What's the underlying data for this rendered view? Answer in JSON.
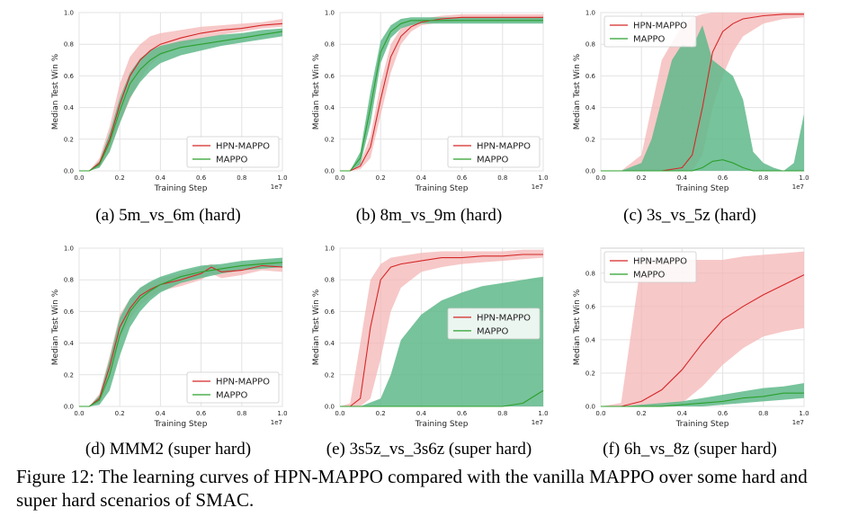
{
  "colors": {
    "hpn_line": "#d62728",
    "hpn_band": "#f4b6b6",
    "mappo_line": "#2ca02c",
    "mappo_band": "#5fb98a"
  },
  "figure_caption": "Figure 12: The learning curves of HPN-MAPPO compared with the vanilla MAPPO over some hard and super hard scenarios of SMAC.",
  "chart_data": [
    {
      "type": "line",
      "caption": "(a)  5m_vs_6m (hard)",
      "xlabel": "Training Step",
      "ylabel": "Median Test Win %",
      "x_offset_label": "1e7",
      "xlim": [
        0,
        1.0
      ],
      "ylim": [
        0,
        1.0
      ],
      "xticks": [
        "0.0",
        "0.2",
        "0.4",
        "0.6",
        "0.8",
        "1.0"
      ],
      "yticks": [
        "0.0",
        "0.2",
        "0.4",
        "0.6",
        "0.8",
        "1.0"
      ],
      "legend_position": "lower-right",
      "series": [
        {
          "name": "HPN-MAPPO",
          "x": [
            0,
            0.05,
            0.1,
            0.15,
            0.2,
            0.25,
            0.3,
            0.35,
            0.4,
            0.5,
            0.6,
            0.7,
            0.8,
            0.9,
            1.0
          ],
          "y": [
            0,
            0,
            0.05,
            0.2,
            0.42,
            0.6,
            0.7,
            0.76,
            0.8,
            0.84,
            0.87,
            0.89,
            0.9,
            0.92,
            0.93
          ],
          "lower": [
            0,
            0,
            0.02,
            0.12,
            0.3,
            0.45,
            0.58,
            0.67,
            0.73,
            0.79,
            0.83,
            0.86,
            0.88,
            0.9,
            0.91
          ],
          "upper": [
            0,
            0,
            0.08,
            0.28,
            0.55,
            0.72,
            0.8,
            0.85,
            0.87,
            0.89,
            0.91,
            0.92,
            0.93,
            0.94,
            0.96
          ]
        },
        {
          "name": "MAPPO",
          "x": [
            0,
            0.05,
            0.1,
            0.15,
            0.2,
            0.25,
            0.3,
            0.35,
            0.4,
            0.5,
            0.6,
            0.7,
            0.8,
            0.9,
            1.0
          ],
          "y": [
            0,
            0,
            0.04,
            0.18,
            0.38,
            0.55,
            0.64,
            0.7,
            0.74,
            0.78,
            0.8,
            0.82,
            0.84,
            0.86,
            0.88
          ],
          "lower": [
            0,
            0,
            0.02,
            0.12,
            0.3,
            0.46,
            0.56,
            0.63,
            0.68,
            0.73,
            0.76,
            0.79,
            0.81,
            0.83,
            0.85
          ],
          "upper": [
            0,
            0,
            0.06,
            0.24,
            0.46,
            0.62,
            0.71,
            0.76,
            0.79,
            0.82,
            0.84,
            0.86,
            0.87,
            0.89,
            0.9
          ]
        }
      ]
    },
    {
      "type": "line",
      "caption": "(b)  8m_vs_9m (hard)",
      "xlabel": "Training Step",
      "ylabel": "Median Test Win %",
      "x_offset_label": "1e7",
      "xlim": [
        0,
        1.0
      ],
      "ylim": [
        0,
        1.0
      ],
      "xticks": [
        "0.0",
        "0.2",
        "0.4",
        "0.6",
        "0.8",
        "1.0"
      ],
      "yticks": [
        "0.0",
        "0.2",
        "0.4",
        "0.6",
        "0.8",
        "1.0"
      ],
      "legend_position": "lower-right",
      "series": [
        {
          "name": "HPN-MAPPO",
          "x": [
            0,
            0.05,
            0.1,
            0.15,
            0.2,
            0.25,
            0.3,
            0.35,
            0.4,
            0.5,
            0.6,
            0.7,
            0.8,
            0.9,
            1.0
          ],
          "y": [
            0,
            0,
            0.03,
            0.15,
            0.45,
            0.72,
            0.85,
            0.91,
            0.94,
            0.96,
            0.97,
            0.97,
            0.97,
            0.97,
            0.97
          ],
          "lower": [
            0,
            0,
            0.01,
            0.08,
            0.35,
            0.62,
            0.8,
            0.88,
            0.92,
            0.94,
            0.95,
            0.95,
            0.95,
            0.95,
            0.95
          ],
          "upper": [
            0,
            0,
            0.05,
            0.22,
            0.55,
            0.8,
            0.9,
            0.94,
            0.96,
            0.98,
            0.99,
            0.99,
            0.99,
            0.99,
            0.99
          ]
        },
        {
          "name": "MAPPO",
          "x": [
            0,
            0.05,
            0.1,
            0.15,
            0.2,
            0.25,
            0.3,
            0.35,
            0.4,
            0.5,
            0.6,
            0.7,
            0.8,
            0.9,
            1.0
          ],
          "y": [
            0,
            0,
            0.08,
            0.4,
            0.75,
            0.88,
            0.93,
            0.95,
            0.95,
            0.95,
            0.95,
            0.95,
            0.95,
            0.95,
            0.95
          ],
          "lower": [
            0,
            0,
            0.04,
            0.3,
            0.68,
            0.84,
            0.9,
            0.92,
            0.93,
            0.93,
            0.93,
            0.93,
            0.93,
            0.93,
            0.93
          ],
          "upper": [
            0,
            0,
            0.12,
            0.5,
            0.82,
            0.92,
            0.96,
            0.97,
            0.97,
            0.97,
            0.97,
            0.97,
            0.97,
            0.97,
            0.97
          ]
        }
      ]
    },
    {
      "type": "line",
      "caption": "(c)  3s_vs_5z (hard)",
      "xlabel": "Training Step",
      "ylabel": "Median Test Win %",
      "x_offset_label": "1e7",
      "xlim": [
        0,
        1.0
      ],
      "ylim": [
        0,
        1.0
      ],
      "xticks": [
        "0.0",
        "0.2",
        "0.4",
        "0.6",
        "0.8",
        "1.0"
      ],
      "yticks": [
        "0.0",
        "0.2",
        "0.4",
        "0.6",
        "0.8",
        "1.0"
      ],
      "legend_position": "upper-left",
      "series": [
        {
          "name": "HPN-MAPPO",
          "x": [
            0,
            0.1,
            0.2,
            0.3,
            0.4,
            0.45,
            0.5,
            0.55,
            0.6,
            0.65,
            0.7,
            0.8,
            0.9,
            1.0
          ],
          "y": [
            0,
            0,
            0,
            0,
            0.02,
            0.1,
            0.4,
            0.75,
            0.88,
            0.93,
            0.96,
            0.98,
            0.99,
            0.99
          ],
          "lower": [
            0,
            0,
            0,
            0,
            0,
            0,
            0.1,
            0.4,
            0.6,
            0.75,
            0.85,
            0.93,
            0.96,
            0.97
          ],
          "upper": [
            0,
            0,
            0.1,
            0.7,
            0.92,
            0.97,
            0.99,
            1.0,
            1.0,
            1.0,
            1.0,
            1.0,
            1.0,
            1.0
          ]
        },
        {
          "name": "MAPPO",
          "x": [
            0,
            0.1,
            0.2,
            0.25,
            0.3,
            0.35,
            0.4,
            0.45,
            0.5,
            0.55,
            0.6,
            0.65,
            0.7,
            0.75,
            0.8,
            0.85,
            0.9,
            0.95,
            1.0
          ],
          "y": [
            0,
            0,
            0,
            0,
            0,
            0,
            0,
            0,
            0.02,
            0.06,
            0.07,
            0.05,
            0.02,
            0,
            0,
            0,
            0,
            0,
            0
          ],
          "lower": [
            0,
            0,
            0,
            0,
            0,
            0,
            0,
            0,
            0,
            0,
            0,
            0,
            0,
            0,
            0,
            0,
            0,
            0,
            0
          ],
          "upper": [
            0,
            0,
            0.05,
            0.2,
            0.45,
            0.7,
            0.8,
            0.78,
            0.92,
            0.7,
            0.65,
            0.6,
            0.45,
            0.12,
            0.05,
            0.02,
            0,
            0.05,
            0.36
          ]
        }
      ]
    },
    {
      "type": "line",
      "caption": "(d)  MMM2 (super hard)",
      "xlabel": "Training Step",
      "ylabel": "Median Test Win %",
      "x_offset_label": "1e7",
      "xlim": [
        0,
        1.0
      ],
      "ylim": [
        0,
        1.0
      ],
      "xticks": [
        "0.0",
        "0.2",
        "0.4",
        "0.6",
        "0.8",
        "1.0"
      ],
      "yticks": [
        "0.0",
        "0.2",
        "0.4",
        "0.6",
        "0.8",
        "1.0"
      ],
      "legend_position": "lower-right",
      "series": [
        {
          "name": "HPN-MAPPO",
          "x": [
            0,
            0.05,
            0.1,
            0.15,
            0.2,
            0.25,
            0.3,
            0.35,
            0.4,
            0.5,
            0.6,
            0.65,
            0.7,
            0.8,
            0.9,
            1.0
          ],
          "y": [
            0,
            0,
            0.05,
            0.25,
            0.5,
            0.62,
            0.7,
            0.74,
            0.77,
            0.8,
            0.84,
            0.88,
            0.85,
            0.86,
            0.89,
            0.88
          ],
          "lower": [
            0,
            0,
            0.02,
            0.18,
            0.42,
            0.55,
            0.64,
            0.69,
            0.73,
            0.76,
            0.8,
            0.84,
            0.81,
            0.83,
            0.86,
            0.85
          ],
          "upper": [
            0,
            0,
            0.08,
            0.32,
            0.58,
            0.68,
            0.75,
            0.78,
            0.81,
            0.84,
            0.88,
            0.9,
            0.88,
            0.89,
            0.92,
            0.91
          ]
        },
        {
          "name": "MAPPO",
          "x": [
            0,
            0.05,
            0.1,
            0.15,
            0.2,
            0.25,
            0.3,
            0.35,
            0.4,
            0.5,
            0.6,
            0.7,
            0.8,
            0.9,
            1.0
          ],
          "y": [
            0,
            0,
            0.04,
            0.2,
            0.45,
            0.6,
            0.68,
            0.73,
            0.77,
            0.82,
            0.85,
            0.87,
            0.89,
            0.9,
            0.91
          ],
          "lower": [
            0,
            0,
            0.01,
            0.1,
            0.32,
            0.5,
            0.6,
            0.67,
            0.72,
            0.78,
            0.81,
            0.84,
            0.86,
            0.87,
            0.88
          ],
          "upper": [
            0,
            0,
            0.07,
            0.3,
            0.56,
            0.68,
            0.75,
            0.79,
            0.82,
            0.86,
            0.89,
            0.9,
            0.92,
            0.93,
            0.94
          ]
        }
      ]
    },
    {
      "type": "line",
      "caption": "(e)  3s5z_vs_3s6z (super hard)",
      "xlabel": "Training Step",
      "ylabel": "Median Test Win %",
      "x_offset_label": "1e7",
      "xlim": [
        0,
        1.0
      ],
      "ylim": [
        0,
        1.0
      ],
      "xticks": [
        "0.0",
        "0.2",
        "0.4",
        "0.6",
        "0.8",
        "1.0"
      ],
      "yticks": [
        "0.0",
        "0.2",
        "0.4",
        "0.6",
        "0.8",
        "1.0"
      ],
      "legend_position": "center-right",
      "series": [
        {
          "name": "HPN-MAPPO",
          "x": [
            0,
            0.05,
            0.1,
            0.15,
            0.2,
            0.25,
            0.3,
            0.4,
            0.5,
            0.6,
            0.7,
            0.8,
            0.9,
            1.0
          ],
          "y": [
            0,
            0,
            0.05,
            0.5,
            0.8,
            0.88,
            0.9,
            0.92,
            0.94,
            0.94,
            0.95,
            0.95,
            0.96,
            0.96
          ],
          "lower": [
            0,
            0,
            0,
            0.05,
            0.3,
            0.6,
            0.75,
            0.85,
            0.88,
            0.9,
            0.91,
            0.92,
            0.93,
            0.94
          ],
          "upper": [
            0,
            0.02,
            0.4,
            0.8,
            0.9,
            0.94,
            0.95,
            0.97,
            0.98,
            0.98,
            0.98,
            0.98,
            0.99,
            0.99
          ]
        },
        {
          "name": "MAPPO",
          "x": [
            0,
            0.1,
            0.2,
            0.25,
            0.3,
            0.4,
            0.5,
            0.6,
            0.7,
            0.8,
            0.9,
            0.95,
            1.0
          ],
          "y": [
            0,
            0,
            0,
            0,
            0,
            0,
            0,
            0,
            0,
            0,
            0.02,
            0.06,
            0.1
          ],
          "lower": [
            0,
            0,
            0,
            0,
            0,
            0,
            0,
            0,
            0,
            0,
            0,
            0,
            0
          ],
          "upper": [
            0,
            0,
            0.05,
            0.2,
            0.42,
            0.58,
            0.67,
            0.72,
            0.76,
            0.78,
            0.8,
            0.81,
            0.82
          ]
        }
      ]
    },
    {
      "type": "line",
      "caption": "(f)  6h_vs_8z (super hard)",
      "xlabel": "Training Step",
      "ylabel": "Median Test Win %",
      "x_offset_label": "1e7",
      "xlim": [
        0,
        1.0
      ],
      "ylim": [
        0,
        0.95
      ],
      "xticks": [
        "0.0",
        "0.2",
        "0.4",
        "0.6",
        "0.8",
        "1.0"
      ],
      "yticks": [
        "0.0",
        "0.2",
        "0.4",
        "0.6",
        "0.8"
      ],
      "legend_position": "upper-left",
      "series": [
        {
          "name": "HPN-MAPPO",
          "x": [
            0,
            0.1,
            0.2,
            0.3,
            0.4,
            0.5,
            0.6,
            0.7,
            0.8,
            0.9,
            1.0
          ],
          "y": [
            0,
            0,
            0.03,
            0.1,
            0.22,
            0.38,
            0.52,
            0.6,
            0.67,
            0.73,
            0.79
          ],
          "lower": [
            0,
            0,
            0,
            0,
            0.02,
            0.12,
            0.25,
            0.35,
            0.42,
            0.45,
            0.47
          ],
          "upper": [
            0,
            0.02,
            0.88,
            0.88,
            0.88,
            0.88,
            0.88,
            0.9,
            0.91,
            0.92,
            0.93
          ]
        },
        {
          "name": "MAPPO",
          "x": [
            0,
            0.1,
            0.2,
            0.3,
            0.4,
            0.5,
            0.6,
            0.7,
            0.8,
            0.9,
            1.0
          ],
          "y": [
            0,
            0,
            0,
            0,
            0.01,
            0.02,
            0.03,
            0.05,
            0.06,
            0.08,
            0.08
          ],
          "lower": [
            0,
            0,
            0,
            0,
            0,
            0,
            0.01,
            0.02,
            0.03,
            0.04,
            0.05
          ],
          "upper": [
            0,
            0,
            0.01,
            0.02,
            0.03,
            0.05,
            0.07,
            0.09,
            0.11,
            0.12,
            0.14
          ]
        }
      ]
    }
  ]
}
